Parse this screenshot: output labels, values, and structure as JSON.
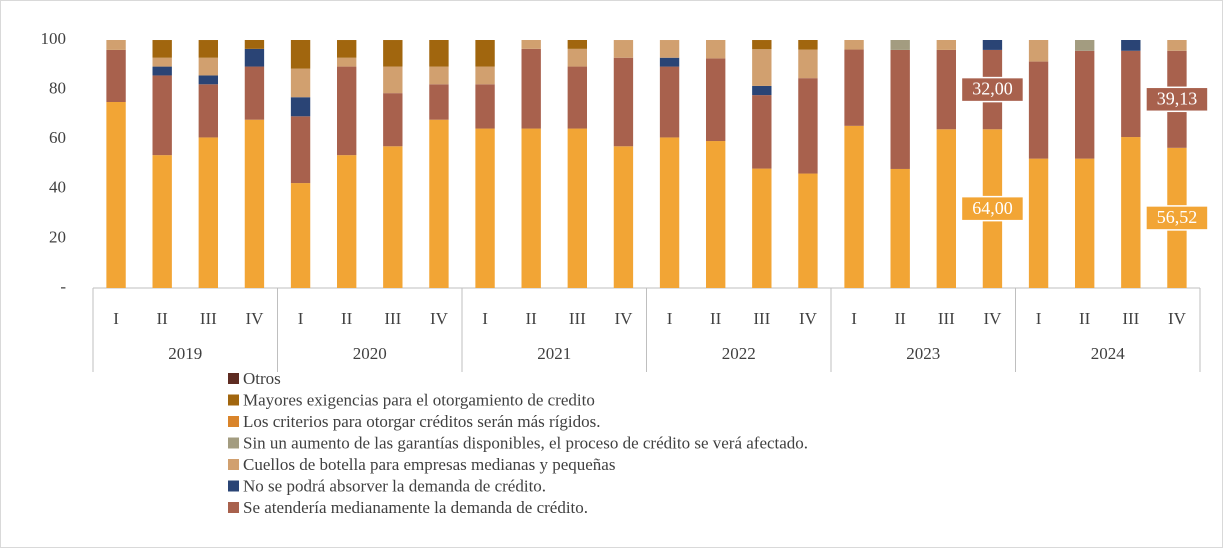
{
  "chart_data": {
    "type": "stacked_bar",
    "categories": [
      "I",
      "II",
      "III",
      "IV",
      "I",
      "II",
      "III",
      "IV",
      "I",
      "II",
      "III",
      "IV",
      "I",
      "II",
      "III",
      "IV",
      "I",
      "II",
      "III",
      "IV",
      "I",
      "II",
      "III",
      "IV"
    ],
    "groups": [
      "2019",
      "2020",
      "2021",
      "2022",
      "2023",
      "2024"
    ],
    "ylim": [
      0,
      100
    ],
    "yticks": [
      {
        "value": 0,
        "label": "-"
      },
      20,
      40,
      60,
      80,
      100
    ],
    "grid": false,
    "series": [
      {
        "color": "#f2a535",
        "values": [
          75,
          53.57,
          60.71,
          67.86,
          42.31,
          53.57,
          57.14,
          67.86,
          64.29,
          64.29,
          64.29,
          57.14,
          60.71,
          59.26,
          48.15,
          46.15,
          65.38,
          48,
          64,
          64,
          52.17,
          52.17,
          60.87,
          56.52
        ],
        "value_labels": [
          null,
          null,
          null,
          null,
          null,
          null,
          null,
          null,
          null,
          null,
          null,
          null,
          null,
          null,
          null,
          null,
          null,
          null,
          null,
          "64,00",
          null,
          null,
          null,
          "56,52"
        ]
      },
      {
        "name": "Se atendería medianamente la demanda de crédito.",
        "color": "#a8614d",
        "values": [
          21,
          32.14,
          21.43,
          21.43,
          26.92,
          35.71,
          21.43,
          14.29,
          17.86,
          32.14,
          25,
          35.71,
          28.57,
          33.33,
          29.63,
          38.46,
          30.77,
          48,
          32,
          32,
          39.13,
          43.48,
          34.78,
          39.13
        ],
        "value_labels": [
          null,
          null,
          null,
          null,
          null,
          null,
          null,
          null,
          null,
          null,
          null,
          null,
          null,
          null,
          null,
          null,
          null,
          null,
          null,
          "32,00",
          null,
          null,
          null,
          "39,13"
        ]
      },
      {
        "name": "No se podrá absorver la demanda de crédito.",
        "color": "#2a4475",
        "values": [
          0,
          3.57,
          3.57,
          7.14,
          7.69,
          0,
          0,
          0,
          0,
          0,
          0,
          0,
          3.57,
          0,
          3.7,
          0,
          0,
          0,
          0,
          4,
          0,
          0,
          4.35,
          0
        ]
      },
      {
        "name": "Cuellos de botella para empresas medianas y pequeñas",
        "color": "#d1a06f",
        "values": [
          4,
          3.57,
          7.14,
          0,
          11.54,
          3.57,
          10.71,
          7.14,
          7.14,
          3.57,
          7.14,
          7.14,
          7.14,
          7.41,
          14.81,
          11.54,
          3.85,
          0,
          4,
          0,
          8.7,
          0,
          0,
          4.35
        ]
      },
      {
        "name": "Sin un aumento de las garantías disponibles, el proceso de crédito se verá afectado.",
        "color": "#a39c80",
        "values": [
          0,
          0,
          0,
          0,
          0,
          0,
          0,
          0,
          0,
          0,
          0,
          0,
          0,
          0,
          0,
          0,
          0,
          4,
          0,
          0,
          0,
          4.35,
          0,
          0
        ]
      },
      {
        "name": "Los criterios para otorgar créditos serán más rígidos.",
        "color": "#d9842a",
        "values": [
          0,
          0,
          0,
          0,
          0,
          0,
          0,
          0,
          0,
          0,
          0,
          0,
          0,
          0,
          0,
          0,
          0,
          0,
          0,
          0,
          0,
          0,
          0,
          0
        ]
      },
      {
        "name": "Mayores exigencias para el otorgamiento de credito",
        "color": "#a1660e",
        "values": [
          0,
          7.14,
          7.14,
          3.57,
          11.54,
          7.14,
          10.71,
          10.71,
          10.71,
          0,
          3.57,
          0,
          0,
          0,
          3.7,
          3.85,
          0,
          0,
          0,
          0,
          0,
          0,
          0,
          0
        ]
      },
      {
        "name": "Otros",
        "color": "#5e2c22",
        "values": [
          0,
          0,
          0,
          0,
          0,
          0,
          0,
          0,
          0,
          0,
          0,
          0,
          0,
          0,
          0,
          0,
          0,
          0,
          0,
          0,
          0,
          0,
          0,
          0
        ]
      }
    ]
  }
}
